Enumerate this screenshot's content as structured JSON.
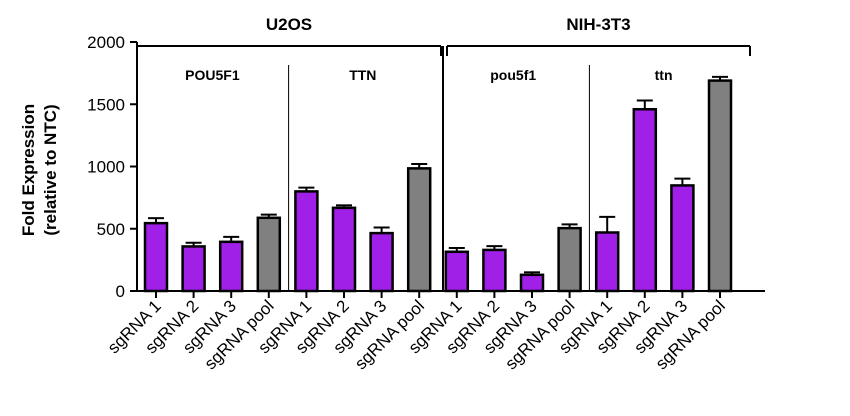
{
  "chart_data": {
    "type": "bar",
    "ylabel_line1": "Fold Expression",
    "ylabel_line2": "(relative to NTC)",
    "ylim": [
      0,
      2000
    ],
    "yticks": [
      "0",
      "500",
      "1000",
      "1500",
      "2000"
    ],
    "ytick_values": [
      0,
      500,
      1000,
      1500,
      2000
    ],
    "grid": false,
    "categories": [
      "sgRNA 1",
      "sgRNA 2",
      "sgRNA 3",
      "sgRNA pool"
    ],
    "colors": {
      "sgRNA": "#a020e8",
      "pool": "#808080",
      "edge": "#000000"
    },
    "groups": [
      {
        "label": "U2OS",
        "panels": [
          {
            "label": "POU5F1",
            "values": [
              545,
              358,
              395,
              588
            ],
            "errors": [
              40,
              30,
              40,
              25
            ]
          },
          {
            "label": "TTN",
            "values": [
              800,
              668,
              465,
              985
            ],
            "errors": [
              30,
              20,
              45,
              35
            ]
          }
        ]
      },
      {
        "label": "NIH-3T3",
        "panels": [
          {
            "label": "pou5f1",
            "values": [
              315,
              330,
              130,
              505
            ],
            "errors": [
              30,
              30,
              20,
              30
            ]
          },
          {
            "label": "ttn",
            "values": [
              470,
              1460,
              848,
              1690
            ],
            "errors": [
              125,
              70,
              55,
              30
            ]
          }
        ]
      }
    ]
  }
}
